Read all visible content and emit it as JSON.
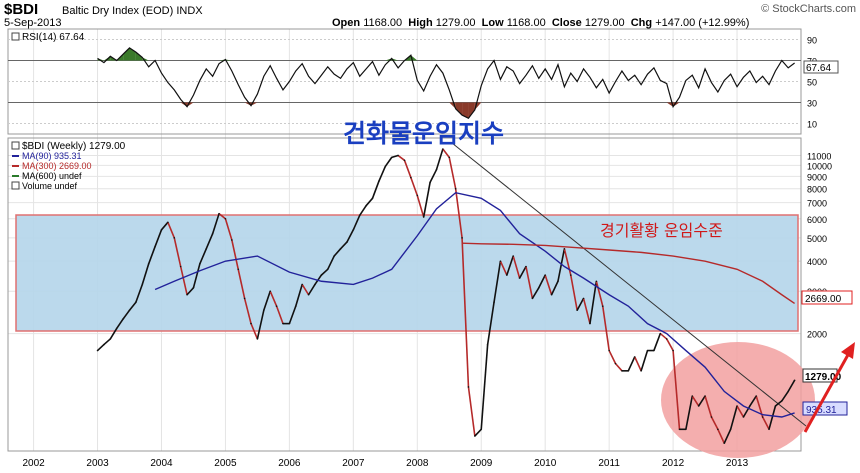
{
  "header": {
    "symbol": "$BDI",
    "name": "Baltic Dry Index (EOD)",
    "exchange": "INDX",
    "date": "5-Sep-2013",
    "open_label": "Open",
    "open": "1168.00",
    "high_label": "High",
    "high": "1279.00",
    "low_label": "Low",
    "low": "1168.00",
    "close_label": "Close",
    "close": "1279.00",
    "chg_label": "Chg",
    "chg": "+147.00 (+12.99%)",
    "brand": "© StockCharts.com"
  },
  "rsi": {
    "label": "RSI(14) 67.64",
    "current": 67.64,
    "current_label": "67.64",
    "levels": [
      90,
      70,
      50,
      30,
      10
    ],
    "level_labels": [
      "90",
      "70",
      "50",
      "30",
      "10"
    ],
    "overbought": 70,
    "oversold": 30,
    "series": [
      [
        2003.0,
        72
      ],
      [
        2003.1,
        68
      ],
      [
        2003.2,
        74
      ],
      [
        2003.3,
        70
      ],
      [
        2003.4,
        76
      ],
      [
        2003.5,
        82
      ],
      [
        2003.6,
        78
      ],
      [
        2003.7,
        73
      ],
      [
        2003.8,
        64
      ],
      [
        2003.9,
        70
      ],
      [
        2004.0,
        58
      ],
      [
        2004.1,
        49
      ],
      [
        2004.2,
        42
      ],
      [
        2004.3,
        33
      ],
      [
        2004.4,
        26
      ],
      [
        2004.5,
        37
      ],
      [
        2004.6,
        51
      ],
      [
        2004.7,
        62
      ],
      [
        2004.8,
        55
      ],
      [
        2004.9,
        67
      ],
      [
        2005.0,
        71
      ],
      [
        2005.1,
        60
      ],
      [
        2005.2,
        47
      ],
      [
        2005.3,
        35
      ],
      [
        2005.4,
        27
      ],
      [
        2005.5,
        38
      ],
      [
        2005.6,
        55
      ],
      [
        2005.7,
        65
      ],
      [
        2005.8,
        53
      ],
      [
        2005.9,
        42
      ],
      [
        2006.0,
        50
      ],
      [
        2006.1,
        60
      ],
      [
        2006.2,
        67
      ],
      [
        2006.3,
        55
      ],
      [
        2006.4,
        48
      ],
      [
        2006.5,
        56
      ],
      [
        2006.6,
        64
      ],
      [
        2006.7,
        57
      ],
      [
        2006.8,
        53
      ],
      [
        2006.9,
        62
      ],
      [
        2007.0,
        68
      ],
      [
        2007.1,
        55
      ],
      [
        2007.2,
        62
      ],
      [
        2007.3,
        69
      ],
      [
        2007.4,
        56
      ],
      [
        2007.5,
        66
      ],
      [
        2007.6,
        72
      ],
      [
        2007.7,
        63
      ],
      [
        2007.8,
        70
      ],
      [
        2007.9,
        75
      ],
      [
        2008.0,
        51
      ],
      [
        2008.1,
        41
      ],
      [
        2008.2,
        55
      ],
      [
        2008.3,
        66
      ],
      [
        2008.4,
        58
      ],
      [
        2008.5,
        42
      ],
      [
        2008.6,
        24
      ],
      [
        2008.7,
        18
      ],
      [
        2008.8,
        15
      ],
      [
        2008.9,
        23
      ],
      [
        2009.0,
        46
      ],
      [
        2009.1,
        62
      ],
      [
        2009.2,
        70
      ],
      [
        2009.3,
        52
      ],
      [
        2009.4,
        64
      ],
      [
        2009.5,
        60
      ],
      [
        2009.6,
        48
      ],
      [
        2009.7,
        56
      ],
      [
        2009.8,
        65
      ],
      [
        2009.9,
        53
      ],
      [
        2010.0,
        62
      ],
      [
        2010.1,
        52
      ],
      [
        2010.2,
        66
      ],
      [
        2010.3,
        45
      ],
      [
        2010.4,
        58
      ],
      [
        2010.5,
        50
      ],
      [
        2010.6,
        62
      ],
      [
        2010.7,
        54
      ],
      [
        2010.8,
        44
      ],
      [
        2010.9,
        52
      ],
      [
        2011.0,
        39
      ],
      [
        2011.1,
        50
      ],
      [
        2011.2,
        60
      ],
      [
        2011.3,
        51
      ],
      [
        2011.4,
        56
      ],
      [
        2011.5,
        47
      ],
      [
        2011.6,
        57
      ],
      [
        2011.7,
        63
      ],
      [
        2011.8,
        51
      ],
      [
        2011.9,
        48
      ],
      [
        2012.0,
        26
      ],
      [
        2012.1,
        35
      ],
      [
        2012.2,
        51
      ],
      [
        2012.3,
        56
      ],
      [
        2012.4,
        44
      ],
      [
        2012.5,
        62
      ],
      [
        2012.6,
        49
      ],
      [
        2012.7,
        40
      ],
      [
        2012.8,
        51
      ],
      [
        2012.9,
        57
      ],
      [
        2013.0,
        45
      ],
      [
        2013.1,
        54
      ],
      [
        2013.2,
        60
      ],
      [
        2013.3,
        49
      ],
      [
        2013.4,
        55
      ],
      [
        2013.5,
        47
      ],
      [
        2013.6,
        60
      ],
      [
        2013.7,
        70
      ],
      [
        2013.8,
        63
      ],
      [
        2013.9,
        67.64
      ]
    ]
  },
  "price": {
    "label": "$BDI (Weekly) 1279.00",
    "ma90_label": "MA(90) 935.31",
    "ma300_label": "MA(300) 2669.00",
    "ma600_label": "MA(600) undef",
    "volume_label": "Volume undef",
    "ma90_value_label": "935.31",
    "ma300_value_label": "2669.00",
    "last_value_label": "1279.00",
    "scale": "log",
    "y_ticks": [
      11000,
      10000,
      9000,
      8000,
      7000,
      6000,
      5000,
      4000,
      3000,
      2000
    ],
    "y_tick_labels": [
      "11000",
      "10000",
      "9000",
      "8000",
      "7000",
      "6000",
      "5000",
      "4000",
      "3000",
      "2000"
    ],
    "x_ticks": [
      2002,
      2003,
      2004,
      2005,
      2006,
      2007,
      2008,
      2009,
      2010,
      2011,
      2012,
      2013
    ],
    "x_tick_labels": [
      "2002",
      "2003",
      "2004",
      "2005",
      "2006",
      "2007",
      "2008",
      "2009",
      "2010",
      "2011",
      "2012",
      "2013"
    ]
  },
  "chart_data": {
    "type": "line",
    "title": "$BDI (Weekly) 1279.00",
    "yscale": "log",
    "xlim": [
      2001.6,
      2014.0
    ],
    "ylim": [
      650,
      13000
    ],
    "series": [
      {
        "name": "$BDI (Weekly) 1279.00",
        "color": "#111111",
        "x": [
          2003.0,
          2003.1,
          2003.2,
          2003.3,
          2003.4,
          2003.5,
          2003.6,
          2003.7,
          2003.8,
          2003.9,
          2004.0,
          2004.1,
          2004.2,
          2004.3,
          2004.4,
          2004.5,
          2004.6,
          2004.7,
          2004.8,
          2004.9,
          2005.0,
          2005.1,
          2005.2,
          2005.3,
          2005.4,
          2005.5,
          2005.6,
          2005.7,
          2005.8,
          2005.9,
          2006.0,
          2006.1,
          2006.2,
          2006.3,
          2006.4,
          2006.5,
          2006.6,
          2006.7,
          2006.8,
          2006.9,
          2007.0,
          2007.1,
          2007.2,
          2007.3,
          2007.4,
          2007.5,
          2007.6,
          2007.7,
          2007.8,
          2007.9,
          2008.0,
          2008.1,
          2008.2,
          2008.3,
          2008.4,
          2008.5,
          2008.6,
          2008.7,
          2008.8,
          2008.9,
          2009.0,
          2009.1,
          2009.2,
          2009.3,
          2009.4,
          2009.5,
          2009.6,
          2009.7,
          2009.8,
          2009.9,
          2010.0,
          2010.1,
          2010.2,
          2010.3,
          2010.4,
          2010.5,
          2010.6,
          2010.7,
          2010.8,
          2010.9,
          2011.0,
          2011.1,
          2011.2,
          2011.3,
          2011.4,
          2011.5,
          2011.6,
          2011.7,
          2011.8,
          2011.9,
          2012.0,
          2012.1,
          2012.2,
          2012.3,
          2012.4,
          2012.5,
          2012.6,
          2012.7,
          2012.8,
          2012.9,
          2013.0,
          2013.1,
          2013.2,
          2013.3,
          2013.4,
          2013.5,
          2013.6,
          2013.7,
          2013.8,
          2013.9
        ],
        "y": [
          1700,
          1800,
          1900,
          2100,
          2300,
          2500,
          2700,
          3200,
          3900,
          4600,
          5400,
          5800,
          5000,
          3800,
          2900,
          3100,
          3900,
          4500,
          5200,
          6300,
          6000,
          4900,
          3700,
          2800,
          2200,
          1900,
          2500,
          3000,
          2600,
          2200,
          2200,
          2600,
          3200,
          2900,
          3200,
          3500,
          3700,
          4200,
          4500,
          4800,
          5400,
          6200,
          6800,
          7300,
          8600,
          9900,
          10800,
          11000,
          10500,
          8900,
          7500,
          6100,
          8500,
          9600,
          11700,
          10800,
          8000,
          5000,
          1200,
          750,
          800,
          1800,
          2700,
          4000,
          3500,
          4200,
          3400,
          3800,
          2800,
          3100,
          3500,
          2900,
          3300,
          4500,
          3500,
          2500,
          2800,
          2200,
          3300,
          2600,
          1700,
          1500,
          1400,
          1400,
          1600,
          1400,
          1700,
          1700,
          2000,
          1900,
          1700,
          800,
          800,
          1100,
          1000,
          1100,
          900,
          800,
          700,
          800,
          1000,
          900,
          1000,
          1100,
          900,
          800,
          1000,
          1050,
          1150,
          1279
        ]
      },
      {
        "name": "MA(90) 935.31",
        "color": "#22229a",
        "x": [
          2003.9,
          2004.2,
          2004.6,
          2005.0,
          2005.5,
          2006.0,
          2006.5,
          2007.0,
          2007.3,
          2007.6,
          2008.0,
          2008.3,
          2008.6,
          2009.0,
          2009.3,
          2009.6,
          2010.0,
          2010.3,
          2010.6,
          2011.0,
          2011.3,
          2011.6,
          2011.9,
          2012.2,
          2012.5,
          2012.8,
          2013.1,
          2013.4,
          2013.7,
          2013.9
        ],
        "y": [
          3050,
          3300,
          3650,
          4000,
          4200,
          3600,
          3300,
          3200,
          3400,
          3700,
          5100,
          6600,
          7700,
          7300,
          6500,
          5200,
          4400,
          3800,
          3400,
          2900,
          2600,
          2200,
          2000,
          1700,
          1450,
          1150,
          1000,
          920,
          900,
          935.31
        ]
      },
      {
        "name": "MA(300) 2669.00",
        "color": "#b52a2a",
        "x": [
          2008.7,
          2009.0,
          2009.5,
          2010.0,
          2010.5,
          2011.0,
          2011.5,
          2012.0,
          2012.5,
          2013.0,
          2013.4,
          2013.7,
          2013.9
        ],
        "y": [
          4750,
          4720,
          4700,
          4650,
          4550,
          4450,
          4350,
          4200,
          4000,
          3700,
          3300,
          2900,
          2669.0
        ]
      }
    ],
    "rsi": {
      "name": "RSI(14) 67.64",
      "current": 67.64,
      "ylim": [
        0,
        100
      ]
    },
    "annotations": [
      "건화물운임지수",
      "경기활황 운임수준"
    ]
  },
  "annotations": {
    "title_korean": "건화물운임지수",
    "boom_label": "경기활황 운임수준"
  },
  "colors": {
    "band_fill": "#b4d5ea",
    "band_border": "#e07070",
    "circle_fill": "#f2a0a0",
    "arrow": "#e02020",
    "price": "#111111",
    "price_down": "#b52a2a",
    "ma90": "#22229a",
    "ma300": "#b52a2a",
    "rsi_over": "#3a7a2a",
    "rsi_under": "#8a3a2a",
    "korean_title": "#1a3fc0",
    "korean_boom": "#d01818"
  }
}
